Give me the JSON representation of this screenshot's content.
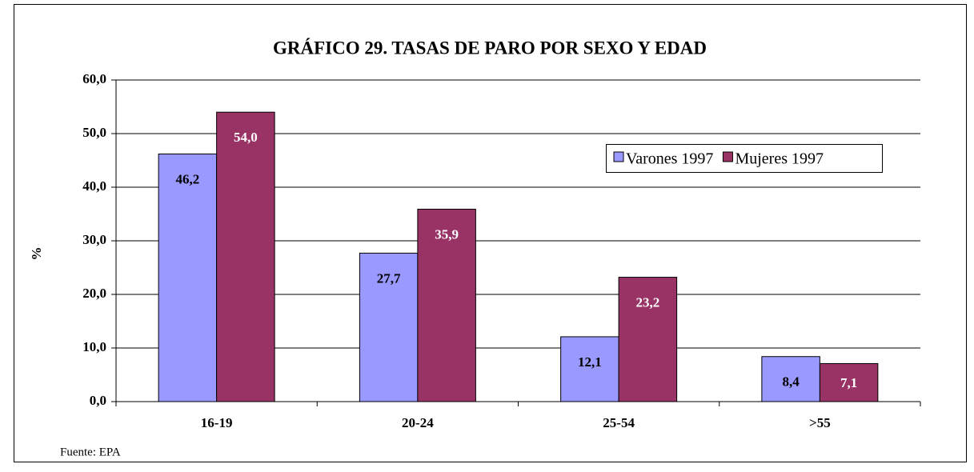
{
  "chart_data": {
    "type": "bar",
    "title": "GRÁFICO 29. TASAS DE PARO POR SEXO Y EDAD",
    "y_label": "%",
    "source": "Fuente: EPA",
    "categories": [
      "16-19",
      "20-24",
      "25-54",
      ">55"
    ],
    "series": [
      {
        "name": "Varones 1997",
        "color": "#9999ff",
        "values": [
          46.2,
          27.7,
          12.1,
          8.4
        ],
        "value_labels": [
          "46,2",
          "27,7",
          "12,1",
          "8,4"
        ],
        "label_color": "#000000"
      },
      {
        "name": "Mujeres 1997",
        "color": "#993366",
        "values": [
          54.0,
          35.9,
          23.2,
          7.1
        ],
        "value_labels": [
          "54,0",
          "35,9",
          "23,2",
          "7,1"
        ],
        "label_color": "#ffffff"
      }
    ],
    "ylim": [
      0,
      60
    ],
    "yticks": [
      {
        "value": 0,
        "label": "0,0"
      },
      {
        "value": 10,
        "label": "10,0"
      },
      {
        "value": 20,
        "label": "20,0"
      },
      {
        "value": 30,
        "label": "30,0"
      },
      {
        "value": 40,
        "label": "40,0"
      },
      {
        "value": 50,
        "label": "50,0"
      },
      {
        "value": 60,
        "label": "60,0"
      }
    ],
    "grid": true,
    "legend": "upper right"
  }
}
